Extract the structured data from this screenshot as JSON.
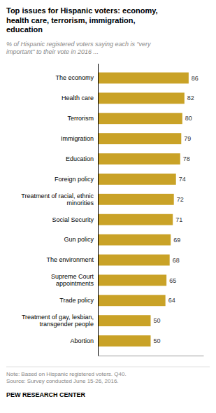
{
  "chart_data": {
    "type": "bar",
    "orientation": "horizontal",
    "title": "Top issues for Hispanic voters: economy,\nhealth care, terrorism, immigration,\neducation",
    "subtitle": "% of Hispanic registered voters saying each is “very\nimportant” to their vote in 2016 ...",
    "categories": [
      "Abortion",
      "Treatment of gay, lesbian,\ntransgender people",
      "Trade policy",
      "Supreme Court\nappointments",
      "The environment",
      "Gun policy",
      "Social Security",
      "Treatment of racial, ethnic\nminorities",
      "Foreign policy",
      "Education",
      "Immigration",
      "Terrorism",
      "Health care",
      "The economy"
    ],
    "values": [
      50,
      50,
      64,
      65,
      68,
      69,
      71,
      72,
      74,
      78,
      79,
      80,
      82,
      86
    ],
    "color": "#C9A227",
    "xlim": [
      0,
      100
    ],
    "data_labels": true,
    "tick_labels": "y",
    "annotations": [
      "Note: Based on Hispanic registered voters. Q40.\nSource: Survey conducted June 15-26, 2016.",
      "PEW RESEARCH CENTER"
    ]
  }
}
